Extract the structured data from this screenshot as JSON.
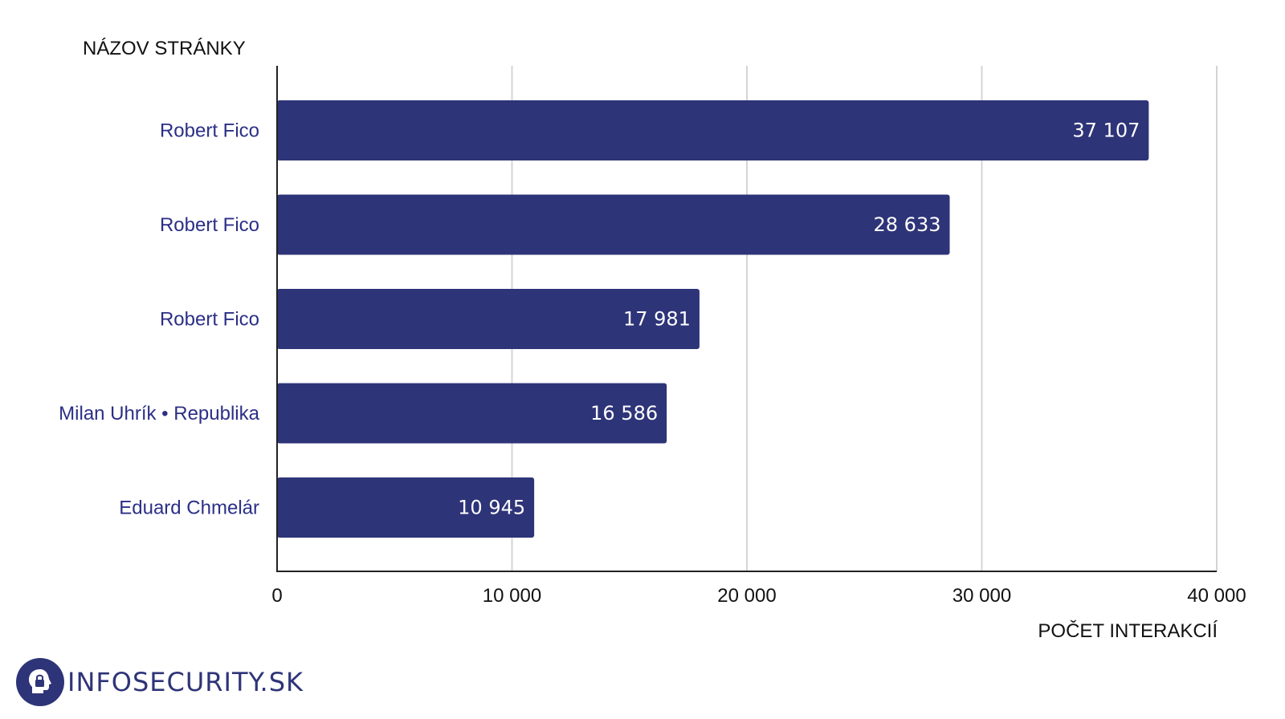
{
  "chart_data": {
    "type": "bar",
    "orientation": "horizontal",
    "categories": [
      "Robert Fico",
      "Robert Fico",
      "Robert Fico",
      "Milan Uhrík • Republika",
      "Eduard Chmelár"
    ],
    "values": [
      37107,
      28633,
      17981,
      16586,
      10945
    ],
    "value_labels": [
      "37 107",
      "28 633",
      "17 981",
      "16 586",
      "10 945"
    ],
    "ylabel": "NÁZOV STRÁNKY",
    "xlabel": "POČET INTERAKCIÍ",
    "xlim": [
      0,
      40000
    ],
    "xticks": [
      0,
      10000,
      20000,
      30000,
      40000
    ],
    "xtick_labels": [
      "0",
      "10 000",
      "20 000",
      "30 000",
      "40 000"
    ],
    "grid": "vertical",
    "legend": "none",
    "bar_color": "#2e3478",
    "label_color": "#2b2f86"
  },
  "brand": {
    "name": "INFOSECURITY.SK",
    "icon": "head-lock-icon",
    "color": "#2e3478"
  }
}
